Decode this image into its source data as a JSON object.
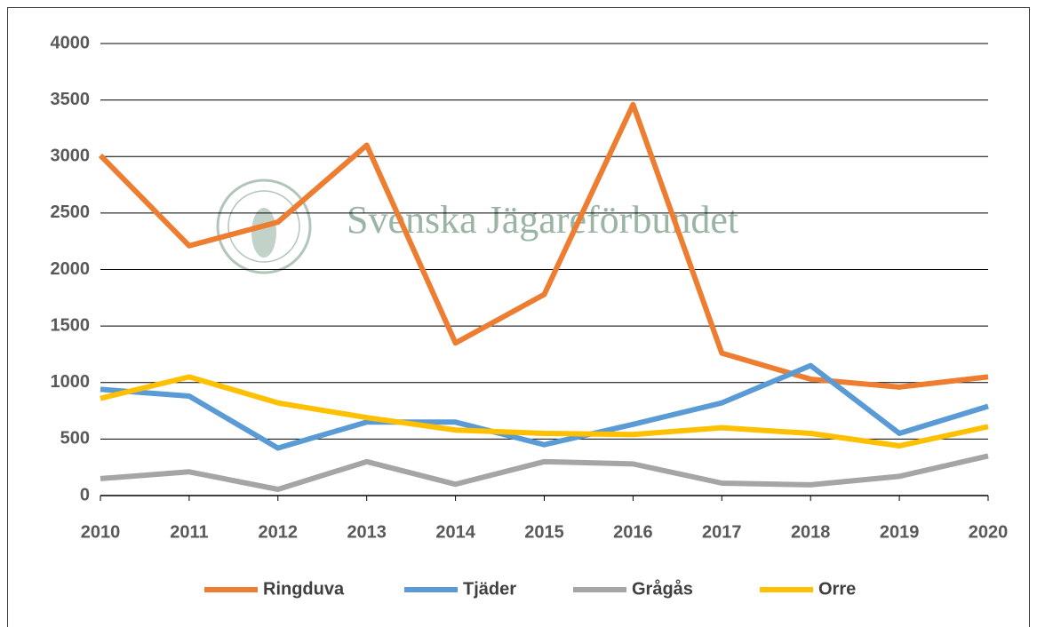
{
  "chart_data": {
    "type": "line",
    "watermark": "Svenska Jägareförbundet",
    "categories": [
      "2010",
      "2011",
      "2012",
      "2013",
      "2014",
      "2015",
      "2016",
      "2017",
      "2018",
      "2019",
      "2020"
    ],
    "series": [
      {
        "name": "Ringduva",
        "color": "#ed7d31",
        "values": [
          3010,
          2210,
          2420,
          3100,
          1350,
          1780,
          3460,
          1260,
          1030,
          960,
          1050
        ]
      },
      {
        "name": "Tjäder",
        "color": "#5b9bd5",
        "values": [
          940,
          880,
          420,
          650,
          650,
          450,
          630,
          820,
          1150,
          550,
          790
        ]
      },
      {
        "name": "Grågås",
        "color": "#a5a5a5",
        "values": [
          150,
          210,
          55,
          300,
          100,
          300,
          280,
          110,
          95,
          170,
          350
        ]
      },
      {
        "name": "Orre",
        "color": "#ffc000",
        "values": [
          860,
          1050,
          820,
          690,
          580,
          550,
          540,
          600,
          550,
          440,
          610
        ]
      }
    ],
    "ylim": [
      0,
      4000
    ],
    "yticks": [
      0,
      500,
      1000,
      1500,
      2000,
      2500,
      3000,
      3500,
      4000
    ],
    "grid": true,
    "legend": "bottom"
  }
}
